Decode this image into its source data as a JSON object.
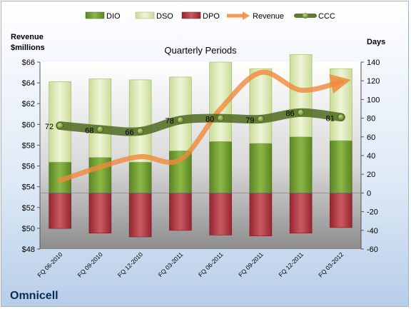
{
  "chart_data": {
    "type": "bar",
    "subtitle": "Quarterly Periods",
    "company": "Omnicell",
    "left_axis": {
      "title_line1": "Revenue",
      "title_line2": "$millions",
      "ylim": [
        48,
        66
      ],
      "ticks": [
        "$48",
        "$50",
        "$52",
        "$54",
        "$56",
        "$58",
        "$60",
        "$62",
        "$64",
        "$66"
      ]
    },
    "right_axis": {
      "title": "Days",
      "ylim": [
        -60,
        140
      ],
      "ticks": [
        "-60",
        "-40",
        "-20",
        "0",
        "20",
        "40",
        "60",
        "80",
        "100",
        "120",
        "140"
      ]
    },
    "categories": [
      "FQ 06-2010",
      "FQ 09-2010",
      "FQ 12-2010",
      "FQ 03-2011",
      "FQ 06-2011",
      "FQ 09-2011",
      "FQ 12-2011",
      "FQ 03-2012"
    ],
    "legend": [
      {
        "key": "dio",
        "label": "DIO"
      },
      {
        "key": "dso",
        "label": "DSO"
      },
      {
        "key": "dpo",
        "label": "DPO"
      },
      {
        "key": "revenue",
        "label": "Revenue"
      },
      {
        "key": "ccc",
        "label": "CCC"
      }
    ],
    "series": {
      "dio": {
        "name": "DIO",
        "values": [
          33,
          38,
          33,
          45,
          55,
          53,
          60,
          56
        ]
      },
      "dso": {
        "name": "DSO",
        "values": [
          86,
          84,
          88,
          79,
          85,
          80,
          88,
          77
        ]
      },
      "dpo": {
        "name": "DPO",
        "values": [
          -38,
          -43,
          -47,
          -40,
          -45,
          -46,
          -43,
          -37
        ]
      },
      "revenue": {
        "name": "Revenue",
        "values": [
          54.6,
          55.9,
          56.9,
          56.6,
          61.5,
          65.0,
          63.3,
          64.1
        ]
      },
      "ccc": {
        "name": "CCC",
        "values": [
          72,
          68,
          66,
          78,
          80,
          79,
          86,
          81
        ],
        "labels": [
          "72",
          "68",
          "66",
          "78",
          "80",
          "79",
          "86",
          "81"
        ]
      }
    },
    "colors": {
      "dio": "#6f9a2f",
      "dso": "#dbe8b4",
      "dpo": "#b3303a",
      "revenue": "#f08a3c",
      "ccc": "#4f6a1f"
    }
  }
}
